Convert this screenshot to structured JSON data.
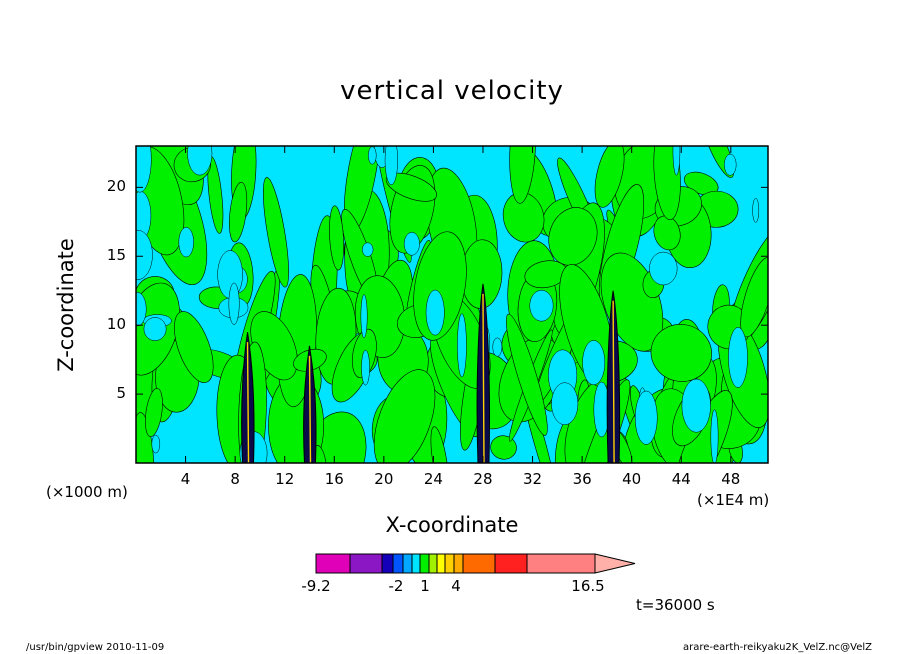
{
  "chart_data": {
    "type": "heatmap",
    "title": "vertical velocity",
    "xlabel": "X-coordinate",
    "ylabel": "Z-coordinate",
    "x_unit_left": "(×1000 m)",
    "x_unit_right": "(×1E4 m)",
    "xlim": [
      0,
      51
    ],
    "ylim": [
      0,
      23
    ],
    "x_ticks": [
      4,
      8,
      12,
      16,
      20,
      24,
      28,
      32,
      36,
      40,
      44,
      48
    ],
    "y_ticks": [
      5,
      10,
      15,
      20
    ],
    "background_field_color": "#00e5ff",
    "positive_field_color": "#00f000",
    "colorbar": {
      "colors": [
        "#e000b8",
        "#8a16c4",
        "#1400b8",
        "#0055ff",
        "#00a8ff",
        "#00e5ff",
        "#00f000",
        "#a0f000",
        "#ffff00",
        "#ffd000",
        "#ffaa00",
        "#ff6a00",
        "#ff2020",
        "#ff8080",
        "#ffb0a8"
      ],
      "tick_labels": [
        "-9.2",
        "-2",
        "1",
        "4",
        "16.5"
      ]
    },
    "convective_cores_x": [
      9,
      14,
      28,
      38.5
    ],
    "time_label": "t=36000 s"
  },
  "footer": {
    "left": "/usr/bin/gpview  2010-11-09",
    "right": "arare-earth-reikyaku2K_VelZ.nc@VelZ"
  }
}
